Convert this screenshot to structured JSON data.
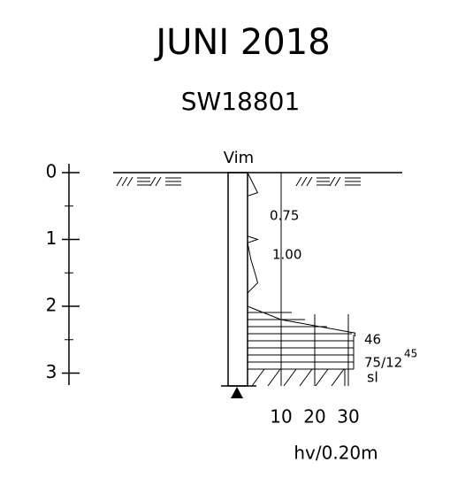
{
  "title": "JUNI 2018",
  "subtitle": "SW18801",
  "method_label": "Vim",
  "depth_axis": {
    "ticks": [
      0,
      1,
      2,
      3
    ]
  },
  "hv_axis": {
    "ticks": [
      10,
      20,
      30
    ],
    "label": "hv/0.20m"
  },
  "profile": {
    "depth": [
      0,
      0.3,
      0.35,
      0.95,
      1.0,
      1.05,
      1.3,
      1.55,
      1.65,
      1.8,
      2.0,
      2.2,
      2.4,
      2.45
    ],
    "hv": [
      0,
      3,
      0,
      0,
      3,
      0,
      1,
      2.5,
      3,
      0,
      0,
      10,
      32,
      32
    ]
  },
  "annotations": {
    "load_1": "0.75",
    "load_2": "1.00",
    "hammer_1": "46",
    "hammer_2": "75/12",
    "hammer_2_sup": "45",
    "stop": "sl"
  }
}
